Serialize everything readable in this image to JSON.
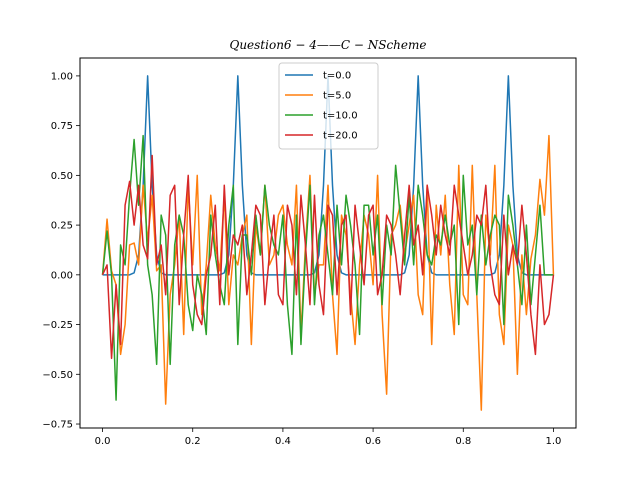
{
  "chart_data": {
    "type": "line",
    "title": "Question6 − 4——C − NScheme",
    "xlabel": "",
    "ylabel": "",
    "xlim": [
      -0.05,
      1.05
    ],
    "ylim": [
      -0.77,
      1.09
    ],
    "x_ticks": [
      0.0,
      0.2,
      0.4,
      0.6,
      0.8,
      1.0
    ],
    "x_tick_labels": [
      "0.0",
      "0.2",
      "0.4",
      "0.6",
      "0.8",
      "1.0"
    ],
    "y_ticks": [
      -0.75,
      -0.5,
      -0.25,
      0.0,
      0.25,
      0.5,
      0.75,
      1.0
    ],
    "y_tick_labels": [
      "−0.75",
      "−0.50",
      "−0.25",
      "0.00",
      "0.25",
      "0.50",
      "0.75",
      "1.00"
    ],
    "grid": false,
    "legend_position": "top-center",
    "x": [
      0.0,
      0.01,
      0.02,
      0.03,
      0.04,
      0.05,
      0.06,
      0.07,
      0.08,
      0.09,
      0.1,
      0.11,
      0.12,
      0.13,
      0.14,
      0.15,
      0.16,
      0.17,
      0.18,
      0.19,
      0.2,
      0.21,
      0.22,
      0.23,
      0.24,
      0.25,
      0.26,
      0.27,
      0.28,
      0.29,
      0.3,
      0.31,
      0.32,
      0.33,
      0.34,
      0.35,
      0.36,
      0.37,
      0.38,
      0.39,
      0.4,
      0.41,
      0.42,
      0.43,
      0.44,
      0.45,
      0.46,
      0.47,
      0.48,
      0.49,
      0.5,
      0.51,
      0.52,
      0.53,
      0.54,
      0.55,
      0.56,
      0.57,
      0.58,
      0.59,
      0.6,
      0.61,
      0.62,
      0.63,
      0.64,
      0.65,
      0.66,
      0.67,
      0.68,
      0.69,
      0.7,
      0.71,
      0.72,
      0.73,
      0.74,
      0.75,
      0.76,
      0.77,
      0.78,
      0.79,
      0.8,
      0.81,
      0.82,
      0.83,
      0.84,
      0.85,
      0.86,
      0.87,
      0.88,
      0.89,
      0.9,
      0.91,
      0.92,
      0.93,
      0.94,
      0.95,
      0.96,
      0.97,
      0.98,
      0.99,
      1.0
    ],
    "series": [
      {
        "name": "t=0.0",
        "color": "#1f77b4",
        "values": [
          0,
          0,
          0,
          0,
          0,
          0,
          0,
          0.01,
          0.1,
          0.45,
          1.0,
          0.45,
          0.1,
          0.01,
          0,
          0,
          0,
          0,
          0,
          0,
          0,
          0,
          0,
          0,
          0,
          0,
          0,
          0.01,
          0.1,
          0.45,
          1.0,
          0.45,
          0.1,
          0.01,
          0,
          0,
          0,
          0,
          0,
          0,
          0,
          0,
          0,
          0,
          0,
          0,
          0,
          0.01,
          0.1,
          0.45,
          1.0,
          0.45,
          0.1,
          0.01,
          0,
          0,
          0,
          0,
          0,
          0,
          0,
          0,
          0,
          0,
          0,
          0,
          0,
          0.01,
          0.1,
          0.45,
          1.0,
          0.45,
          0.1,
          0.01,
          0,
          0,
          0,
          0,
          0,
          0,
          0,
          0,
          0,
          0,
          0,
          0,
          0,
          0.01,
          0.1,
          0.45,
          1.0,
          0.45,
          0.1,
          0.01,
          0,
          0,
          0,
          0,
          0,
          0,
          0
        ]
      },
      {
        "name": "t=5.0",
        "color": "#ff7f0e",
        "values": [
          0,
          0.28,
          0.02,
          -0.05,
          -0.4,
          -0.25,
          0.15,
          0.16,
          0.05,
          0.45,
          0.17,
          0.4,
          0.02,
          0.05,
          -0.65,
          -0.1,
          0.05,
          0.3,
          -0.3,
          0.45,
          0.05,
          0.5,
          -0.2,
          0.05,
          0.4,
          0.15,
          0.02,
          0.4,
          -0.15,
          0.1,
          0.05,
          0.2,
          0.3,
          -0.35,
          0.25,
          0.1,
          0.45,
          0.05,
          0.1,
          0.3,
          0.35,
          0.15,
          0.05,
          0.45,
          -0.3,
          0.15,
          0.5,
          -0.1,
          0.05,
          0.05,
          0.45,
          -0.1,
          -0.4,
          0.3,
          0.2,
          -0.1,
          -0.35,
          0.05,
          0.3,
          0.2,
          -0.05,
          0.5,
          -0.2,
          -0.6,
          0.2,
          0.25,
          0.35,
          0.1,
          0.25,
          0.4,
          -0.1,
          -0.2,
          0.45,
          -0.35,
          0.35,
          0.1,
          0.4,
          -0.05,
          -0.3,
          0.55,
          -0.1,
          -0.15,
          0.55,
          -0.1,
          -0.68,
          0.3,
          0.1,
          0.55,
          -0.2,
          -0.35,
          0.25,
          0.15,
          -0.5,
          0.1,
          -0.2,
          0.08,
          0.2,
          0.48,
          0.3,
          0.7,
          0.0
        ]
      },
      {
        "name": "t=10.0",
        "color": "#2ca02c",
        "values": [
          0,
          0.22,
          0.0,
          -0.63,
          0.15,
          0.05,
          0.4,
          0.68,
          0.35,
          0.7,
          0.05,
          -0.1,
          -0.45,
          0.3,
          0.2,
          -0.45,
          0.15,
          0.3,
          0.2,
          -0.15,
          -0.28,
          0.0,
          -0.1,
          -0.3,
          0.3,
          0.1,
          -0.05,
          -0.15,
          0.25,
          0.45,
          -0.35,
          0.2,
          0.2,
          0.0,
          0.3,
          0.1,
          0.45,
          0.25,
          0.15,
          0.1,
          0.3,
          -0.15,
          -0.4,
          0.3,
          -0.35,
          0.1,
          0.45,
          -0.15,
          0.2,
          0.3,
          0.1,
          -0.1,
          0.35,
          0.05,
          0.4,
          0.25,
          0.05,
          -0.3,
          0.35,
          0.35,
          0.1,
          0.3,
          -0.15,
          0.25,
          0.1,
          0.55,
          0.3,
          0.05,
          0.4,
          0.05,
          0.45,
          0.3,
          0.1,
          0.05,
          0.2,
          0.15,
          0.3,
          0.15,
          0.25,
          -0.25,
          0.5,
          0.15,
          0.25,
          -0.1,
          0.3,
          0.05,
          0.2,
          0.3,
          0.25,
          -0.25,
          0.4,
          0.25,
          0.05,
          -0.15,
          0.25,
          -0.15,
          0.1,
          0.35,
          0.0,
          0.0,
          0.0
        ]
      },
      {
        "name": "t=20.0",
        "color": "#d62728",
        "values": [
          0,
          0.05,
          -0.42,
          -0.05,
          -0.35,
          0.35,
          0.47,
          0.25,
          0.45,
          0.15,
          0.08,
          0.6,
          0.05,
          0.15,
          -0.1,
          0.4,
          0.45,
          -0.15,
          0.2,
          0.5,
          -0.05,
          -0.2,
          -0.25,
          0.0,
          0.1,
          0.35,
          -0.15,
          0.45,
          0.0,
          0.2,
          0.15,
          0.25,
          -0.1,
          0.1,
          0.35,
          0.3,
          -0.15,
          0.1,
          0.3,
          -0.1,
          -0.15,
          0.35,
          0.25,
          -0.1,
          0.4,
          0.15,
          -0.15,
          0.4,
          -0.05,
          -0.2,
          0.35,
          0.3,
          -0.1,
          0.25,
          0.3,
          -0.2,
          0.35,
          0.15,
          -0.05,
          0.3,
          0.35,
          -0.1,
          0.0,
          0.3,
          0.25,
          0.1,
          -0.1,
          0.2,
          0.45,
          0.15,
          0.25,
          0.0,
          0.45,
          0.3,
          0.1,
          0.35,
          0.2,
          0.1,
          0.45,
          0.3,
          0.15,
          0.0,
          0.1,
          0.3,
          0.25,
          0.45,
          0.05,
          -0.1,
          -0.15,
          0.3,
          0.0,
          0.15,
          0.05,
          0.35,
          0.1,
          -0.2,
          -0.4,
          0.05,
          -0.25,
          -0.2,
          0.0
        ]
      }
    ]
  }
}
